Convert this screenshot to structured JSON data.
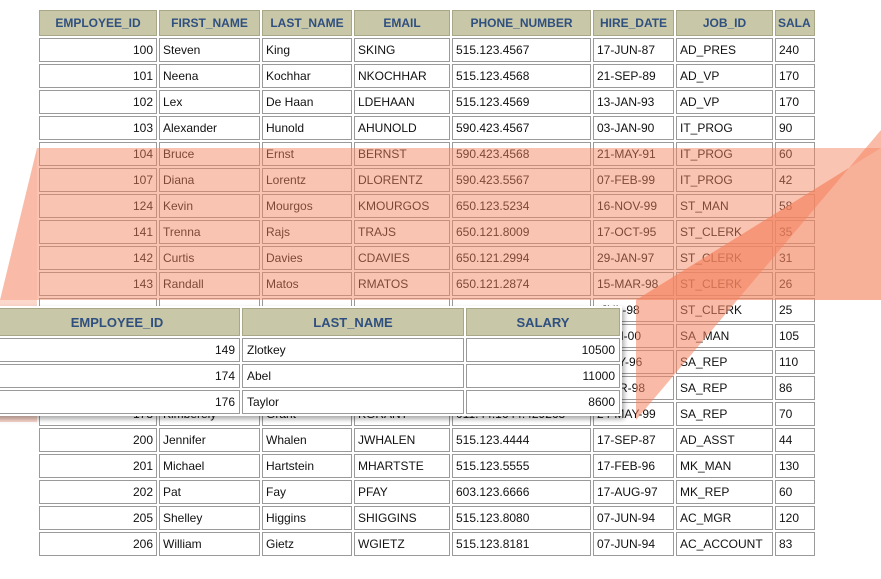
{
  "employees_table": {
    "columns": [
      "EMPLOYEE_ID",
      "FIRST_NAME",
      "LAST_NAME",
      "EMAIL",
      "PHONE_NUMBER",
      "HIRE_DATE",
      "JOB_ID",
      "SALA"
    ],
    "rows": [
      [
        "100",
        "Steven",
        "King",
        "SKING",
        "515.123.4567",
        "17-JUN-87",
        "AD_PRES",
        "240"
      ],
      [
        "101",
        "Neena",
        "Kochhar",
        "NKOCHHAR",
        "515.123.4568",
        "21-SEP-89",
        "AD_VP",
        "170"
      ],
      [
        "102",
        "Lex",
        "De Haan",
        "LDEHAAN",
        "515.123.4569",
        "13-JAN-93",
        "AD_VP",
        "170"
      ],
      [
        "103",
        "Alexander",
        "Hunold",
        "AHUNOLD",
        "590.423.4567",
        "03-JAN-90",
        "IT_PROG",
        "90"
      ],
      [
        "104",
        "Bruce",
        "Ernst",
        "BERNST",
        "590.423.4568",
        "21-MAY-91",
        "IT_PROG",
        "60"
      ],
      [
        "107",
        "Diana",
        "Lorentz",
        "DLORENTZ",
        "590.423.5567",
        "07-FEB-99",
        "IT_PROG",
        "42"
      ],
      [
        "124",
        "Kevin",
        "Mourgos",
        "KMOURGOS",
        "650.123.5234",
        "16-NOV-99",
        "ST_MAN",
        "58"
      ],
      [
        "141",
        "Trenna",
        "Rajs",
        "TRAJS",
        "650.121.8009",
        "17-OCT-95",
        "ST_CLERK",
        "35"
      ],
      [
        "142",
        "Curtis",
        "Davies",
        "CDAVIES",
        "650.121.2994",
        "29-JAN-97",
        "ST_CLERK",
        "31"
      ],
      [
        "143",
        "Randall",
        "Matos",
        "RMATOS",
        "650.121.2874",
        "15-MAR-98",
        "ST_CLERK",
        "26"
      ],
      [
        "",
        "",
        "",
        "",
        "",
        "-JUL-98",
        "ST_CLERK",
        "25"
      ],
      [
        "",
        "",
        "",
        "",
        "",
        "-JAN-00",
        "SA_MAN",
        "105"
      ],
      [
        "",
        "",
        "",
        "",
        "",
        "-MAY-96",
        "SA_REP",
        "110"
      ],
      [
        "",
        "",
        "",
        "",
        "",
        "-MAR-98",
        "SA_REP",
        "86"
      ],
      [
        "178",
        "Kimberely",
        "Grant",
        "KGRANT",
        "011.44.1644.429263",
        "24-MAY-99",
        "SA_REP",
        "70"
      ],
      [
        "200",
        "Jennifer",
        "Whalen",
        "JWHALEN",
        "515.123.4444",
        "17-SEP-87",
        "AD_ASST",
        "44"
      ],
      [
        "201",
        "Michael",
        "Hartstein",
        "MHARTSTE",
        "515.123.5555",
        "17-FEB-96",
        "MK_MAN",
        "130"
      ],
      [
        "202",
        "Pat",
        "Fay",
        "PFAY",
        "603.123.6666",
        "17-AUG-97",
        "MK_REP",
        "60"
      ],
      [
        "205",
        "Shelley",
        "Higgins",
        "SHIGGINS",
        "515.123.8080",
        "07-JUN-94",
        "AC_MGR",
        "120"
      ],
      [
        "206",
        "William",
        "Gietz",
        "WGIETZ",
        "515.123.8181",
        "07-JUN-94",
        "AC_ACCOUNT",
        "83"
      ]
    ]
  },
  "result_table": {
    "columns": [
      "EMPLOYEE_ID",
      "LAST_NAME",
      "SALARY"
    ],
    "rows": [
      [
        "149",
        "Zlotkey",
        "10500"
      ],
      [
        "174",
        "Abel",
        "11000"
      ],
      [
        "176",
        "Taylor",
        "8600"
      ]
    ]
  },
  "colors": {
    "header_bg": "#c8c8a8",
    "header_text": "#2f4f7f",
    "highlight": "#f4845f"
  }
}
